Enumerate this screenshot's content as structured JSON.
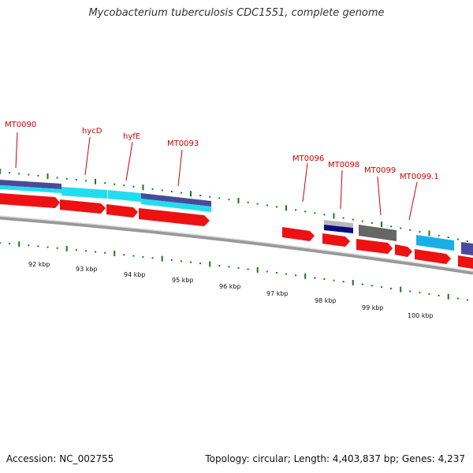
{
  "title": "Mycobacterium tuberculosis CDC1551, complete genome",
  "footer": {
    "accession": "Accession: NC_002755",
    "summary": "Topology: circular; Length: 4,403,837 bp; Genes: 4,237"
  },
  "colors": {
    "backbone": "#888888",
    "ticks": "#1a7a1a",
    "label": "#d00000",
    "leader": "#cc0000",
    "red_gene": "#ee1111",
    "cyan_gene": "#22ddee",
    "sky_gene": "#1aaee8",
    "purple_gene": "#4a4a9a",
    "navy_gene": "#0a0a80",
    "gray_gene": "#666666",
    "lightgray_gene": "#b8b8b8"
  },
  "scale_labels": [
    "92 kbp",
    "93 kbp",
    "94 kbp",
    "95 kbp",
    "96 kbp",
    "97 kbp",
    "98 kbp",
    "99 kbp",
    "100 kbp"
  ],
  "gene_labels": [
    "MT0090",
    "hycD",
    "hyfE",
    "MT0093",
    "MT0096",
    "MT0098",
    "MT0099",
    "MT0099.1"
  ]
}
